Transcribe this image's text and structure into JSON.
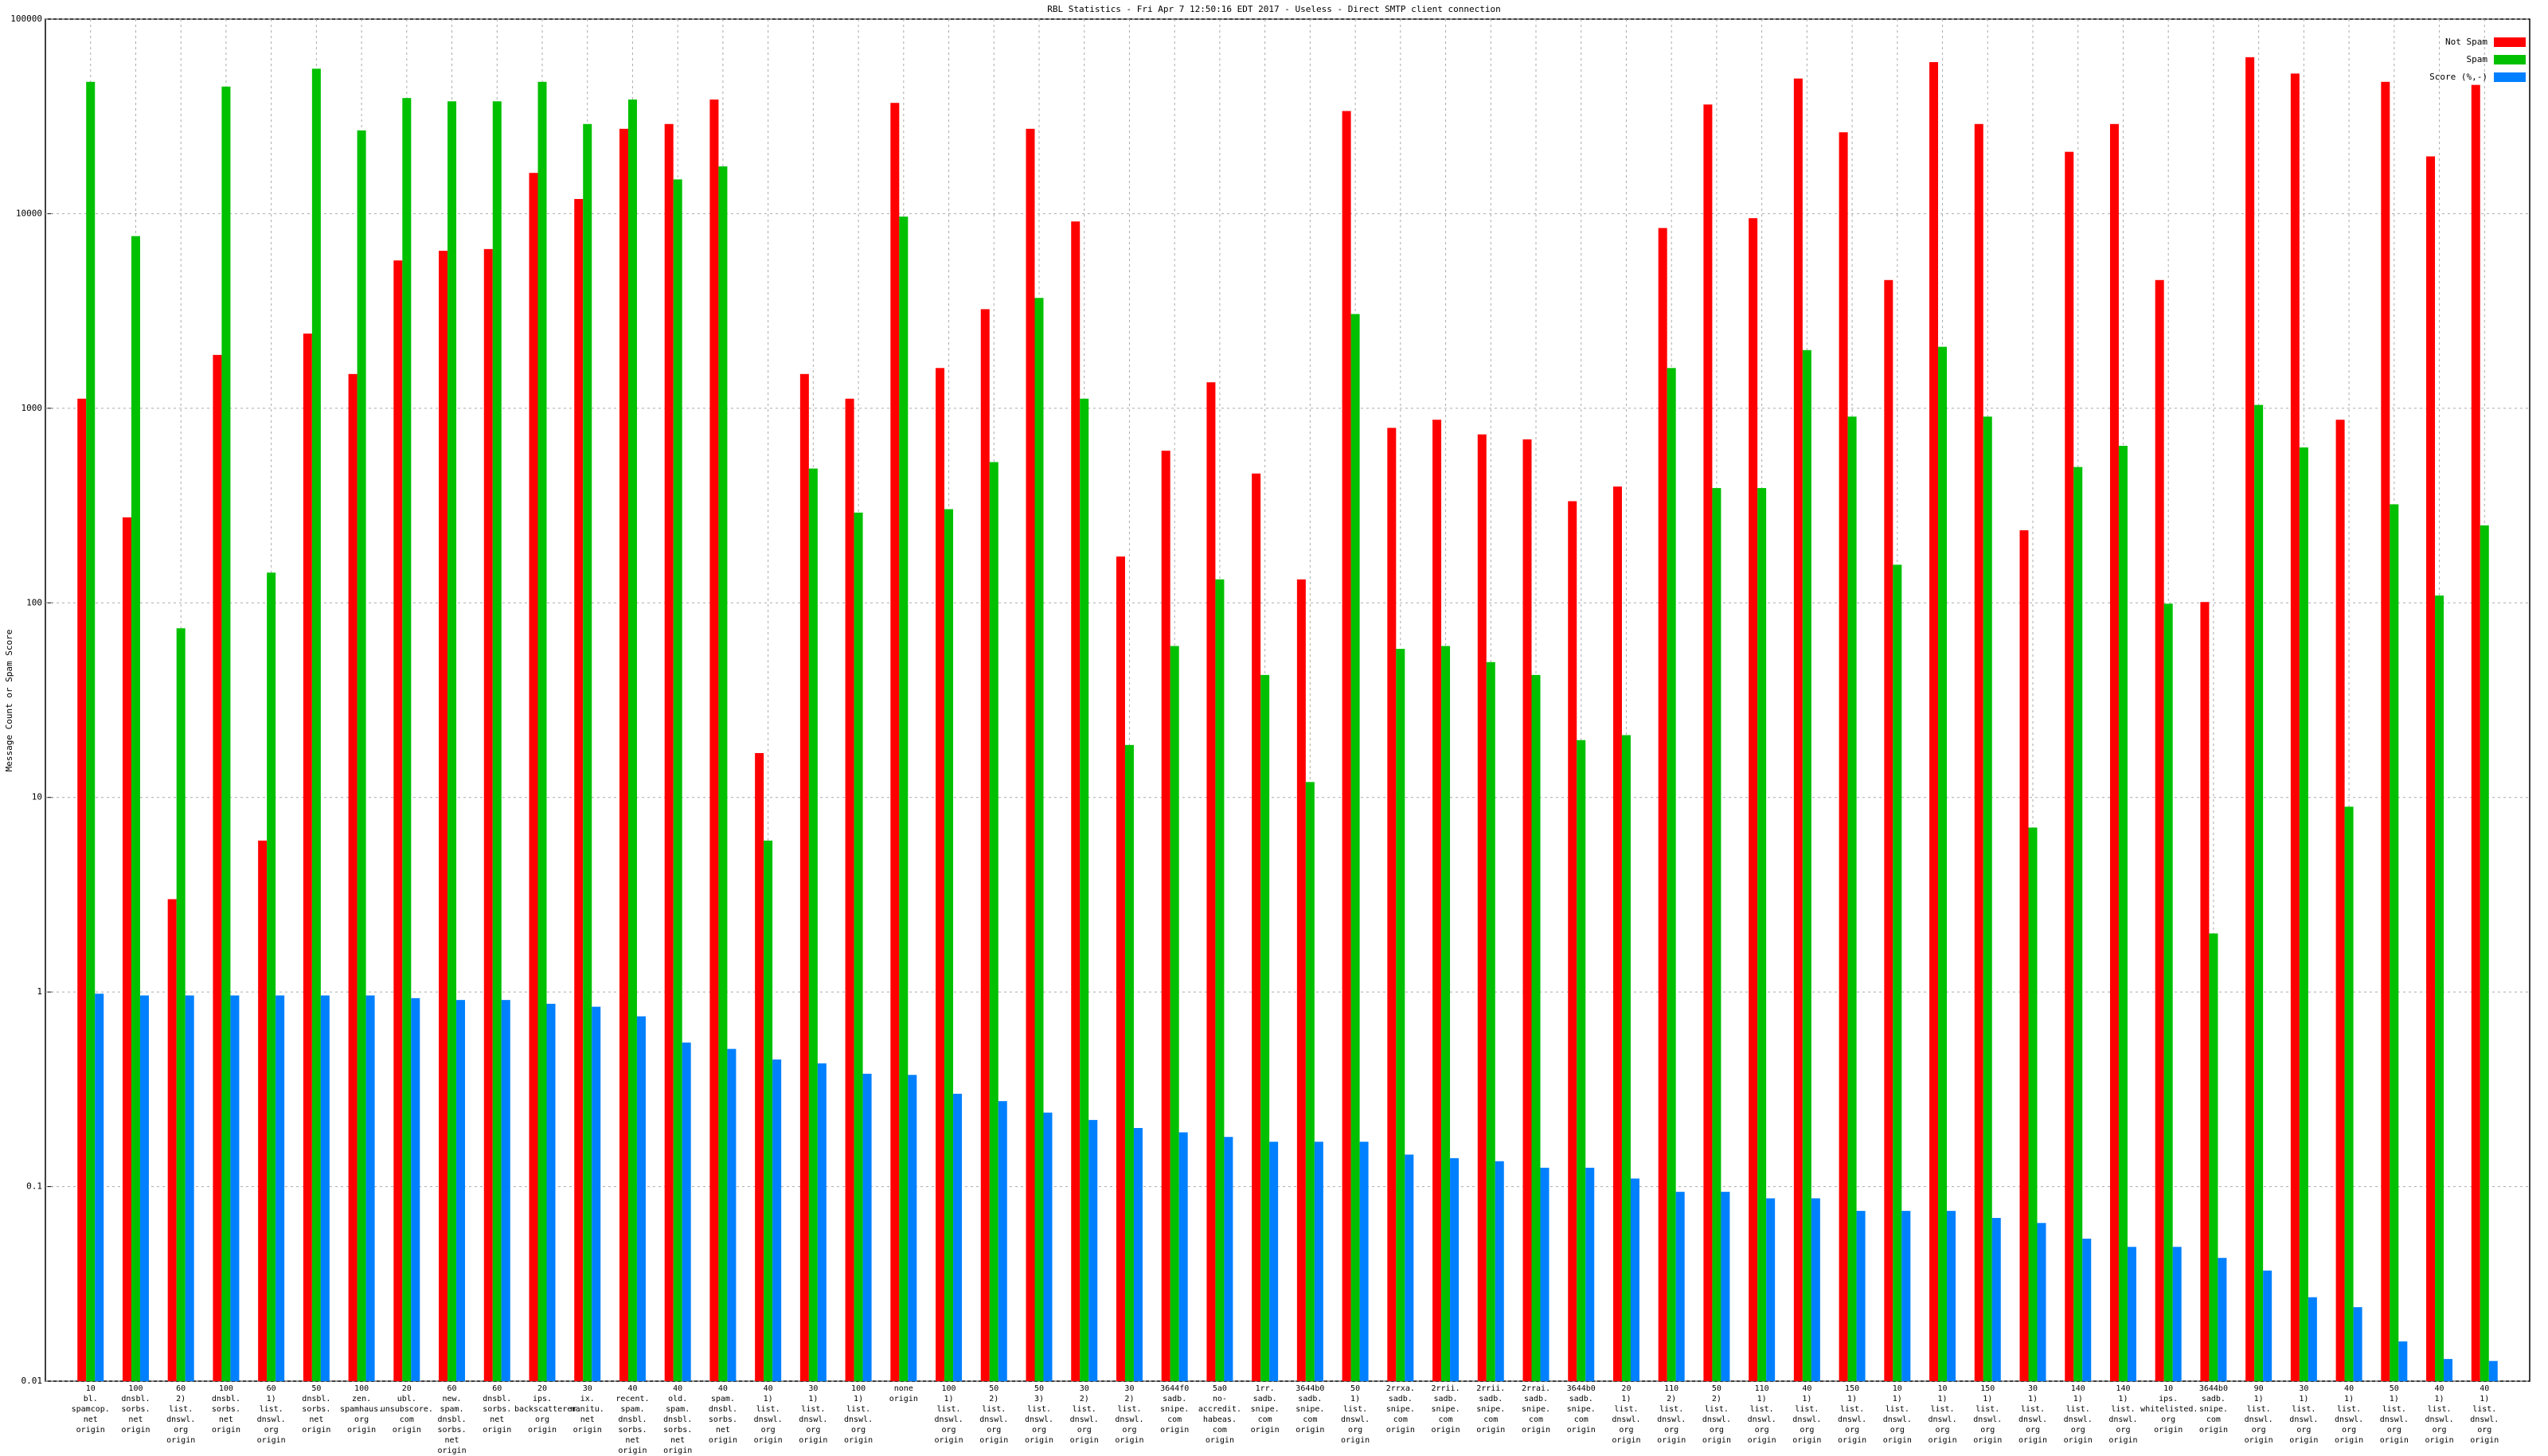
{
  "chart_data": {
    "type": "bar",
    "title": "RBL Statistics - Fri Apr  7 12:50:16 EDT 2017 - Useless - Direct SMTP client connection",
    "y_label": "Message Count or Spam Score",
    "log_scale": true,
    "grid": true,
    "legend": "upper right",
    "ylim": [
      0.01,
      100000
    ],
    "yticks": [
      0.01,
      0.1,
      1,
      10,
      100,
      1000,
      10000,
      100000
    ],
    "categories": [
      "10\nbl.\nspamcop.\nnet\norigin",
      "100\ndnsbl.\nsorbs.\nnet\norigin",
      "60\n2)\nlist.\ndnswl.\norg\norigin",
      "100\ndnsbl.\nsorbs.\nnet\norigin",
      "60\n1)\nlist.\ndnswl.\norg\norigin",
      "50\ndnsbl.\nsorbs.\nnet\norigin",
      "100\nzen.\nspamhaus.\norg\norigin",
      "20\nubl.\nunsubscore.\ncom\norigin",
      "60\nnew.\nspam.\ndnsbl.\nsorbs.\nnet\norigin",
      "60\ndnsbl.\nsorbs.\nnet\norigin",
      "20\nips.\nbackscatterer.\norg\norigin",
      "30\nix.\nmanitu.\nnet\norigin",
      "40\nrecent.\nspam.\ndnsbl.\nsorbs.\nnet\norigin",
      "40\nold.\nspam.\ndnsbl.\nsorbs.\nnet\norigin",
      "40\nspam.\ndnsbl.\nsorbs.\nnet\norigin",
      "40\n1)\nlist.\ndnswl.\norg\norigin",
      "30\n1)\nlist.\ndnswl.\norg\norigin",
      "100\n1)\nlist.\ndnswl.\norg\norigin",
      "none\norigin",
      "100\n1)\nlist.\ndnswl.\norg\norigin",
      "50\n2)\nlist.\ndnswl.\norg\norigin",
      "50\n3)\nlist.\ndnswl.\norg\norigin",
      "30\n2)\nlist.\ndnswl.\norg\norigin",
      "30\n2)\nlist.\ndnswl.\norg\norigin",
      "3644f0\nsadb.\nsnipe.\ncom\norigin",
      "5a0\nno-accredit.\nhabeas.\ncom\norigin",
      "1rr.\nsadb.\nsnipe.\ncom\norigin",
      "3644b0\nsadb.\nsnipe.\ncom\norigin",
      "50\n1)\nlist.\ndnswl.\norg\norigin",
      "2rrxa.\nsadb.\nsnipe.\ncom\norigin",
      "2rrii.\nsadb.\nsnipe.\ncom\norigin",
      "2rrii.\nsadb.\nsnipe.\ncom\norigin",
      "2rrai.\nsadb.\nsnipe.\ncom\norigin",
      "3644b0\nsadb.\nsnipe.\ncom\norigin",
      "20\n1)\nlist.\ndnswl.\norg\norigin",
      "110\n2)\nlist.\ndnswl.\norg\norigin",
      "50\n2)\nlist.\ndnswl.\norg\norigin",
      "110\n1)\nlist.\ndnswl.\norg\norigin",
      "40\n1)\nlist.\ndnswl.\norg\norigin",
      "150\n1)\nlist.\ndnswl.\norg\norigin",
      "10\n1)\nlist.\ndnswl.\norg\norigin",
      "10\n1)\nlist.\ndnswl.\norg\norigin",
      "150\n1)\nlist.\ndnswl.\norg\norigin",
      "30\n1)\nlist.\ndnswl.\norg\norigin",
      "140\n1)\nlist.\ndnswl.\norg\norigin",
      "140\n1)\nlist.\ndnswl.\norg\norigin",
      "10\nips.\nwhitelisted.\norg\norigin",
      "3644b0\nsadb.\nsnipe.\ncom\norigin",
      "90\n1)\nlist.\ndnswl.\norg\norigin",
      "30\n1)\nlist.\ndnswl.\norg\norigin",
      "40\n1)\nlist.\ndnswl.\norg\norigin",
      "50\n1)\nlist.\ndnswl.\norg\norigin",
      "40\n1)\nlist.\ndnswl.\norg\norigin",
      "40\n1)\nlist.\ndnswl.\norg\norigin"
    ],
    "series": [
      {
        "name": "Not Spam",
        "color": "#ff0000",
        "values": [
          1120,
          275,
          3.0,
          1880,
          6.0,
          2420,
          1500,
          5750,
          6450,
          6580,
          16200,
          11900,
          27300,
          28900,
          38600,
          16.9,
          1500,
          1120,
          37100,
          1610,
          3230,
          27300,
          9120,
          173,
          605,
          1360,
          462,
          132,
          33700,
          793,
          873,
          734,
          692,
          333,
          396,
          8440,
          36400,
          9480,
          49500,
          26200,
          4560,
          60100,
          28900,
          236,
          20800,
          28900,
          4560,
          101,
          63700,
          52500,
          873,
          47600,
          19700,
          45900
        ]
      },
      {
        "name": "Spam",
        "color": "#00c000",
        "values": [
          47600,
          7670,
          74,
          45000,
          143,
          55600,
          26800,
          39300,
          37800,
          37800,
          47600,
          28900,
          38600,
          15000,
          17500,
          6.0,
          490,
          291,
          9660,
          303,
          529,
          3690,
          1120,
          18.6,
          60,
          132,
          42.6,
          12,
          3050,
          58,
          60,
          49.6,
          42.6,
          19.7,
          20.9,
          1610,
          389,
          389,
          1990,
          906,
          157,
          2070,
          906,
          7.0,
          499,
          641,
          99,
          2.0,
          1040,
          629,
          8.96,
          321,
          109,
          250
        ]
      },
      {
        "name": "Score (%,-)",
        "color": "#0080ff",
        "values": [
          0.98,
          0.96,
          0.96,
          0.96,
          0.96,
          0.96,
          0.96,
          0.93,
          0.91,
          0.91,
          0.87,
          0.84,
          0.75,
          0.55,
          0.51,
          0.45,
          0.43,
          0.38,
          0.375,
          0.3,
          0.275,
          0.24,
          0.22,
          0.2,
          0.19,
          0.18,
          0.17,
          0.17,
          0.17,
          0.146,
          0.14,
          0.135,
          0.125,
          0.125,
          0.11,
          0.094,
          0.094,
          0.087,
          0.087,
          0.075,
          0.075,
          0.075,
          0.069,
          0.065,
          0.054,
          0.049,
          0.049,
          0.043,
          0.037,
          0.027,
          0.024,
          0.016,
          0.013,
          0.0127
        ]
      }
    ]
  }
}
